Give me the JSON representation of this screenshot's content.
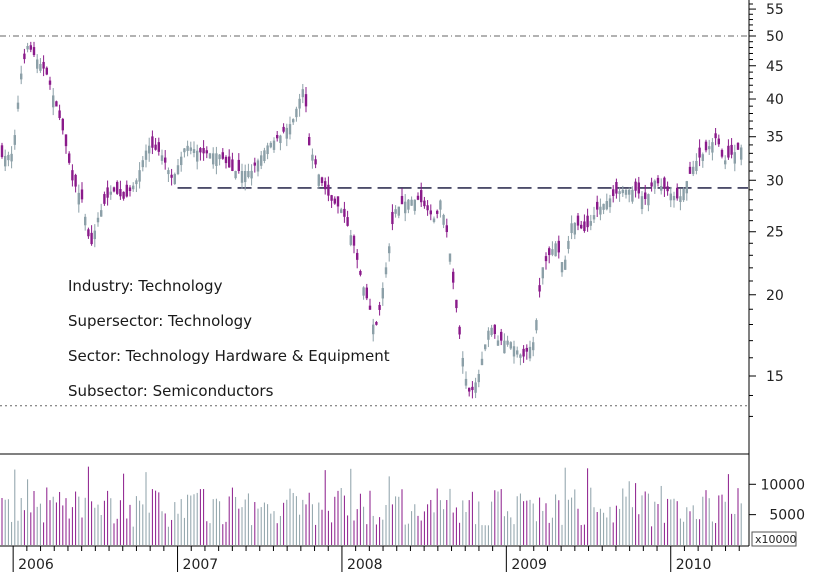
{
  "chart_data": {
    "type": "candlestick",
    "price_scale": "log",
    "ylim": [
      12.5,
      57
    ],
    "y_ticks": [
      15,
      20,
      25,
      30,
      35,
      40,
      45,
      50,
      55
    ],
    "y_tick_labels": [
      "15",
      "20",
      "25",
      "30",
      "35",
      "40",
      "45",
      "50",
      "55"
    ],
    "x_range": [
      2005.92,
      2010.47
    ],
    "x_ticks": [
      2006,
      2007,
      2008,
      2009,
      2010
    ],
    "x_tick_labels": [
      "2006",
      "2007",
      "2008",
      "2009",
      "2010"
    ],
    "volume_ticks": [
      5000,
      10000
    ],
    "volume_tick_labels": [
      "5000",
      "10000"
    ],
    "volume_unit": "x10000",
    "volume_max": 14000,
    "grid": false,
    "reference_lines": [
      {
        "style": "dashdot",
        "value": 50
      },
      {
        "style": "dashed",
        "value": 29.2,
        "x_start": 2007.0
      },
      {
        "style": "dotted",
        "value": 13.5
      }
    ],
    "annotations": [
      "Industry: Technology",
      "Supersector: Technology",
      "Sector: Technology Hardware & Equipment",
      "Subsector: Semiconductors"
    ],
    "price_path": [
      [
        2005.92,
        32.5
      ],
      [
        2006.0,
        33
      ],
      [
        2006.05,
        44
      ],
      [
        2006.09,
        48.5
      ],
      [
        2006.12,
        47
      ],
      [
        2006.2,
        44
      ],
      [
        2006.3,
        36
      ],
      [
        2006.36,
        30
      ],
      [
        2006.42,
        28
      ],
      [
        2006.47,
        23.5
      ],
      [
        2006.52,
        26.5
      ],
      [
        2006.6,
        29
      ],
      [
        2006.68,
        28
      ],
      [
        2006.75,
        30
      ],
      [
        2006.82,
        34
      ],
      [
        2006.9,
        33
      ],
      [
        2006.97,
        30
      ],
      [
        2007.05,
        34
      ],
      [
        2007.15,
        33
      ],
      [
        2007.25,
        33
      ],
      [
        2007.33,
        31
      ],
      [
        2007.45,
        31
      ],
      [
        2007.55,
        34
      ],
      [
        2007.62,
        35
      ],
      [
        2007.7,
        37
      ],
      [
        2007.77,
        42
      ],
      [
        2007.8,
        34
      ],
      [
        2007.87,
        30
      ],
      [
        2007.93,
        28
      ],
      [
        2008.0,
        27
      ],
      [
        2008.07,
        24
      ],
      [
        2008.12,
        21
      ],
      [
        2008.17,
        19
      ],
      [
        2008.2,
        17.5
      ],
      [
        2008.23,
        19
      ],
      [
        2008.28,
        23
      ],
      [
        2008.32,
        27
      ],
      [
        2008.4,
        28
      ],
      [
        2008.47,
        28
      ],
      [
        2008.52,
        27
      ],
      [
        2008.57,
        26
      ],
      [
        2008.6,
        28
      ],
      [
        2008.65,
        24
      ],
      [
        2008.68,
        20.5
      ],
      [
        2008.72,
        17
      ],
      [
        2008.75,
        15
      ],
      [
        2008.78,
        14
      ],
      [
        2008.83,
        15
      ],
      [
        2008.9,
        18
      ],
      [
        2008.95,
        17
      ],
      [
        2009.02,
        17
      ],
      [
        2009.1,
        16
      ],
      [
        2009.17,
        17
      ],
      [
        2009.22,
        22
      ],
      [
        2009.3,
        24
      ],
      [
        2009.35,
        22
      ],
      [
        2009.4,
        26
      ],
      [
        2009.48,
        25
      ],
      [
        2009.55,
        27
      ],
      [
        2009.62,
        28
      ],
      [
        2009.7,
        29
      ],
      [
        2009.78,
        29
      ],
      [
        2009.85,
        28
      ],
      [
        2009.9,
        30
      ],
      [
        2009.97,
        29
      ],
      [
        2010.05,
        28
      ],
      [
        2010.1,
        30
      ],
      [
        2010.15,
        32
      ],
      [
        2010.2,
        33
      ],
      [
        2010.28,
        35
      ],
      [
        2010.32,
        32
      ],
      [
        2010.38,
        33
      ],
      [
        2010.45,
        34
      ]
    ]
  }
}
